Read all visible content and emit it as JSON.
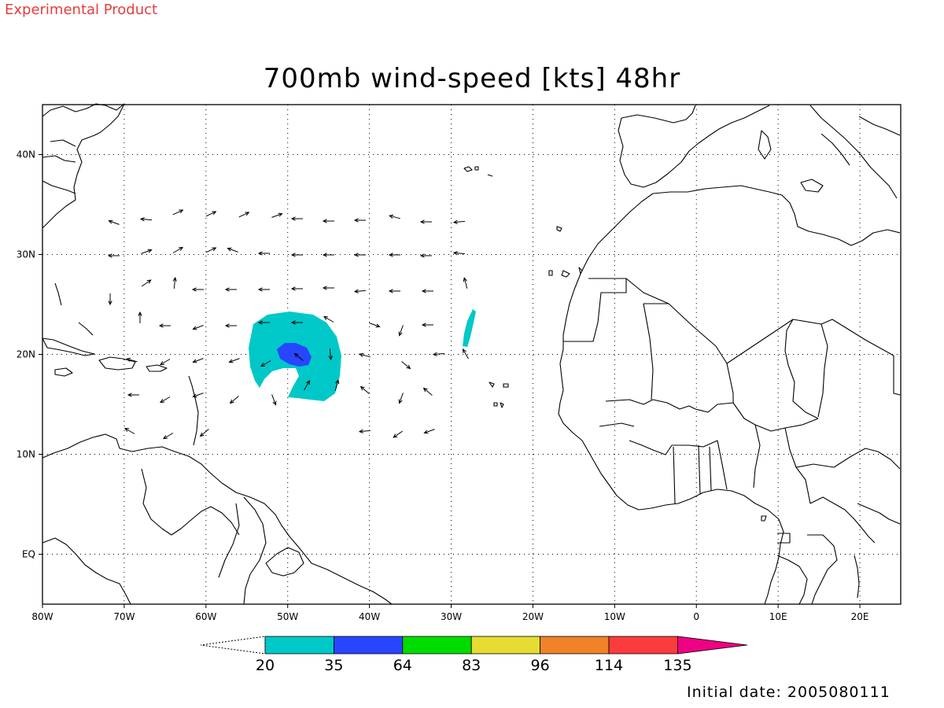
{
  "header": {
    "experimental_label": "Experimental Product",
    "title": "700mb wind-speed [kts] 48hr",
    "initial_date": "Initial date: 2005080111"
  },
  "map": {
    "lon_range": [
      -80,
      25
    ],
    "lat_range": [
      -5,
      45
    ],
    "lon_labels": [
      "80W",
      "70W",
      "60W",
      "50W",
      "40W",
      "30W",
      "20W",
      "10W",
      "0",
      "10E",
      "20E"
    ],
    "lat_labels": [
      "40N",
      "30N",
      "20N",
      "10N",
      "EQ"
    ],
    "grid": "dotted",
    "land_outline_color": "#000000"
  },
  "colorbar": {
    "labels": [
      "20",
      "35",
      "64",
      "83",
      "96",
      "114",
      "135"
    ],
    "colors": [
      "#00c8c8",
      "#2846ff",
      "#00dc00",
      "#e6dc32",
      "#f08228",
      "#fa3c3c",
      "#f00082"
    ],
    "extend": "both"
  },
  "wind_field": {
    "contours": [
      {
        "level_kts": 20,
        "color": "#00c8c8",
        "center_lonlat": [
          -49.5,
          20.5
        ]
      },
      {
        "level_kts": 35,
        "color": "#2846ff",
        "center_lonlat": [
          -49.5,
          20.2
        ]
      },
      {
        "level_kts": 20,
        "color": "#00c8c8",
        "center_lonlat": [
          -28,
          22.5
        ]
      }
    ]
  }
}
